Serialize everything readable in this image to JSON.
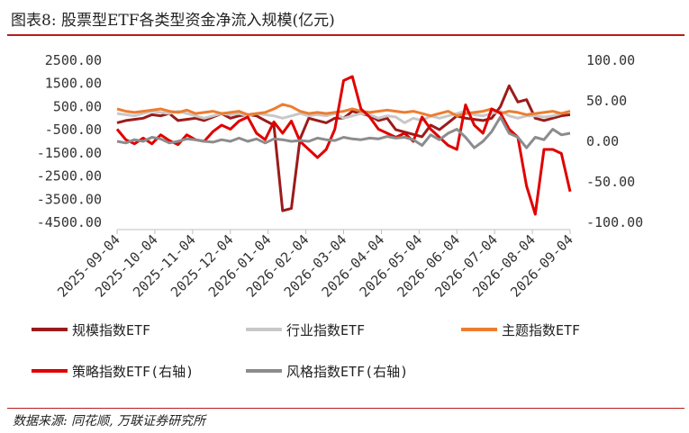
{
  "header": {
    "title": "图表8:  股票型ETF各类型资金净流入规模(亿元)"
  },
  "footer": {
    "source": "数据来源:  同花顺,  万联证券研究所"
  },
  "chart_data": {
    "type": "line",
    "x_ticks": [
      "2025-09-04",
      "2025-10-04",
      "2025-11-04",
      "2025-12-04",
      "2026-01-04",
      "2026-02-04",
      "2026-03-04",
      "2026-04-04",
      "2026-05-04",
      "2026-06-04",
      "2026-07-04",
      "2026-08-04",
      "2026-09-04"
    ],
    "y_left": {
      "ticks": [
        "2500.00",
        "1500.00",
        "500.00",
        "-500.00",
        "-1500.00",
        "-2500.00",
        "-3500.00",
        "-4500.00"
      ],
      "range": [
        -4500,
        2500
      ]
    },
    "y_right": {
      "ticks": [
        "100.00",
        "50.00",
        "0.00",
        "-50.00",
        "-100.00"
      ],
      "range": [
        -100,
        100
      ]
    },
    "grid": false,
    "legend_position": "bottom",
    "series": [
      {
        "name": "规模指数ETF",
        "axis": "left",
        "color": "#9b1b1b",
        "values": [
          -200,
          -100,
          -50,
          0,
          150,
          100,
          200,
          -100,
          -50,
          0,
          -100,
          50,
          200,
          0,
          100,
          150,
          100,
          -100,
          -300,
          -4000,
          -3900,
          -900,
          0,
          -100,
          -200,
          0,
          0,
          300,
          200,
          100,
          -100,
          0,
          -500,
          -600,
          -700,
          -800,
          -300,
          -500,
          -200,
          100,
          0,
          -50,
          -100,
          0,
          500,
          1400,
          700,
          800,
          0,
          -100,
          0,
          100,
          150
        ]
      },
      {
        "name": "行业指数ETF",
        "axis": "left",
        "color": "#c8c8c8",
        "values": [
          200,
          150,
          100,
          200,
          300,
          250,
          200,
          300,
          200,
          100,
          0,
          100,
          200,
          150,
          200,
          100,
          200,
          150,
          100,
          0,
          100,
          200,
          100,
          150,
          100,
          200,
          0,
          100,
          200,
          150,
          0,
          100,
          50,
          -200,
          0,
          -100,
          100,
          0,
          100,
          200,
          300,
          150,
          100,
          200,
          300,
          100,
          0,
          100,
          100,
          50,
          100,
          200,
          300
        ]
      },
      {
        "name": "主题指数ETF",
        "axis": "left",
        "color": "#ed7d31",
        "values": [
          400,
          300,
          250,
          300,
          350,
          400,
          300,
          250,
          350,
          200,
          250,
          300,
          200,
          250,
          300,
          150,
          200,
          250,
          400,
          600,
          500,
          300,
          200,
          250,
          200,
          250,
          300,
          400,
          300,
          250,
          300,
          350,
          300,
          250,
          300,
          200,
          100,
          200,
          300,
          100,
          200,
          250,
          300,
          400,
          200,
          300,
          250,
          150,
          200,
          250,
          300,
          200,
          300
        ]
      },
      {
        "name": "策略指数ETF(右轴)",
        "axis": "right",
        "color": "#e00000",
        "values": [
          15,
          2,
          -3,
          4,
          -3,
          8,
          1,
          -4,
          8,
          2,
          0,
          12,
          20,
          15,
          25,
          30,
          10,
          2,
          24,
          10,
          25,
          0,
          -10,
          -20,
          -10,
          15,
          75,
          80,
          40,
          30,
          15,
          10,
          5,
          10,
          0,
          30,
          15,
          5,
          -5,
          -10,
          45,
          20,
          10,
          40,
          35,
          15,
          5,
          -55,
          -90,
          -10,
          -10,
          -15,
          -62
        ]
      },
      {
        "name": "风格指数ETF(右轴)",
        "axis": "right",
        "color": "#8c8c8c",
        "values": [
          0,
          -2,
          2,
          0,
          5,
          3,
          -2,
          0,
          3,
          2,
          0,
          -1,
          2,
          0,
          4,
          0,
          3,
          -2,
          3,
          2,
          0,
          1,
          0,
          4,
          2,
          1,
          5,
          3,
          2,
          4,
          3,
          6,
          4,
          5,
          2,
          -5,
          8,
          2,
          10,
          15,
          5,
          -8,
          0,
          12,
          30,
          10,
          5,
          -8,
          5,
          2,
          15,
          8,
          10
        ]
      }
    ]
  }
}
